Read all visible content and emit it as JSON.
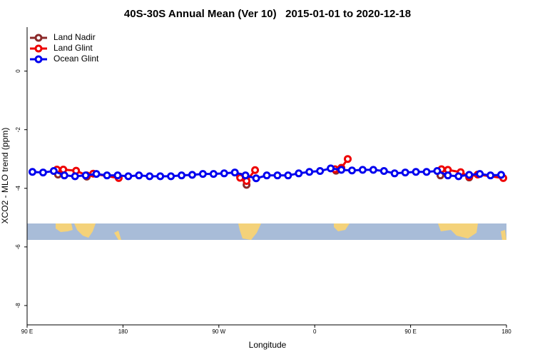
{
  "chart_data": {
    "type": "line",
    "title": "40S-30S Annual Mean (Ver 10)   2015-01-01 to 2020-12-18",
    "x_label": "Longitude",
    "y_label": "XCO2 - MLO trend (ppm)",
    "xlim": [
      90,
      540
    ],
    "ylim": [
      -8.66,
      1.5
    ],
    "xticks": [
      {
        "value": 90,
        "label": "90 E"
      },
      180,
      {
        "value": 270,
        "label": "90 W"
      },
      {
        "value": 360,
        "label": "0"
      },
      {
        "value": 450,
        "label": "90 E"
      },
      {
        "value": 540,
        "label": "180"
      }
    ],
    "yticks": [
      0,
      -2,
      -4,
      -6,
      -8
    ],
    "legend": "top-left",
    "series": [
      {
        "name": "Land Nadir",
        "color": "#8b2a2a",
        "x": [
          119,
          130,
          146,
          200,
          290,
          296,
          330,
          380,
          430,
          478,
          490,
          505
        ],
        "values": [
          -3.53,
          null,
          -3.6,
          null,
          -3.6,
          -3.88,
          null,
          -3.4,
          null,
          -3.56,
          null,
          -3.63
        ]
      },
      {
        "name": "Land Glint",
        "color": "#ee0000",
        "x": [
          118,
          124,
          136,
          146,
          152,
          176,
          230,
          290,
          296,
          304,
          340,
          379,
          385,
          391,
          430,
          479,
          485,
          497,
          505,
          513,
          537
        ],
        "values": [
          -3.36,
          -3.36,
          -3.4,
          -3.56,
          -3.5,
          -3.65,
          null,
          -3.64,
          -3.75,
          -3.38,
          null,
          -3.35,
          -3.3,
          -3.0,
          null,
          -3.35,
          -3.37,
          -3.45,
          -3.6,
          -3.53,
          -3.65
        ]
      },
      {
        "name": "Ocean Glint",
        "color": "#0000ee",
        "x": [
          95,
          105,
          115,
          125,
          135,
          145,
          155,
          165,
          175,
          185,
          195,
          205,
          215,
          225,
          235,
          245,
          255,
          265,
          275,
          285,
          295,
          305,
          315,
          325,
          335,
          345,
          355,
          365,
          375,
          385,
          395,
          405,
          415,
          425,
          435,
          445,
          455,
          465,
          475,
          485,
          495,
          505,
          515,
          525,
          535
        ],
        "values": [
          -3.44,
          -3.46,
          -3.41,
          -3.56,
          -3.59,
          -3.56,
          -3.51,
          -3.56,
          -3.56,
          -3.59,
          -3.56,
          -3.59,
          -3.59,
          -3.59,
          -3.56,
          -3.54,
          -3.51,
          -3.51,
          -3.49,
          -3.46,
          -3.56,
          -3.66,
          -3.56,
          -3.56,
          -3.56,
          -3.49,
          -3.44,
          -3.41,
          -3.32,
          -3.37,
          -3.39,
          -3.37,
          -3.37,
          -3.41,
          -3.49,
          -3.46,
          -3.44,
          -3.44,
          -3.41,
          -3.56,
          -3.59,
          -3.54,
          -3.51,
          -3.56,
          -3.54
        ]
      }
    ]
  }
}
